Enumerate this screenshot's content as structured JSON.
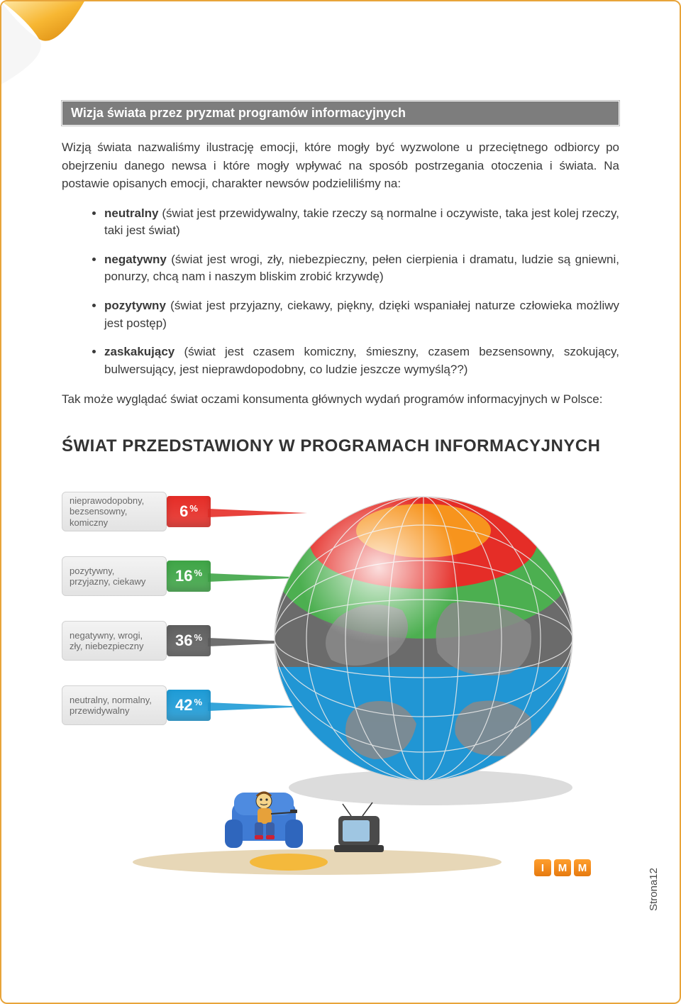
{
  "header": {
    "title": "Wizja świata przez pryzmat programów informacyjnych"
  },
  "intro": "Wizją świata nazwaliśmy ilustrację emocji, które mogły być wyzwolone u przeciętnego odbiorcy po obejrzeniu danego newsa i które mogły wpływać na sposób postrzegania otoczenia i świata. Na postawie opisanych emocji, charakter newsów podzieliliśmy na:",
  "bullets": [
    {
      "term": "neutralny",
      "desc": " (świat jest przewidywalny, takie rzeczy są normalne i oczywiste, taka jest kolej rzeczy, taki jest świat)"
    },
    {
      "term": "negatywny",
      "desc": " (świat jest wrogi, zły, niebezpieczny, pełen cierpienia i dramatu, ludzie są gniewni, ponurzy, chcą nam i naszym bliskim zrobić krzywdę)"
    },
    {
      "term": "pozytywny",
      "desc": " (świat jest przyjazny, ciekawy, piękny, dzięki wspaniałej naturze człowieka możliwy jest postęp)"
    },
    {
      "term": "zaskakujący",
      "desc": " (świat jest czasem komiczny, śmieszny, czasem bezsensowny, szokujący, bulwersujący, jest nieprawdopodobny, co ludzie jeszcze wymyślą??)"
    }
  ],
  "closing": "Tak może wyglądać świat oczami konsumenta głównych wydań programów informacyjnych w Polsce:",
  "infographic": {
    "title": "ŚWIAT PRZEDSTAWIONY W PROGRAMACH INFORMACYJNYCH",
    "globe_colors": {
      "top_cap": "#f05a28",
      "band_top": "#e52d27",
      "band_green": "#4caf50",
      "band_gray": "#6b6b6b",
      "band_blue": "#2196d4",
      "land": "#8a8a8a",
      "grid": "#d9d9d9"
    },
    "categories": [
      {
        "label1": "nieprawodopobny,",
        "label2": "bezsensowny, komiczny",
        "value": 6,
        "color": "#e52d27",
        "wedge": "#e52d27"
      },
      {
        "label1": "pozytywny,",
        "label2": "przyjazny, ciekawy",
        "value": 16,
        "color": "#3fa547",
        "wedge": "#3fa547"
      },
      {
        "label1": "negatywny, wrogi,",
        "label2": "zły, niebezpieczny",
        "value": 36,
        "color": "#5f5f5f",
        "wedge": "#5f5f5f"
      },
      {
        "label1": "neutralny, normalny,",
        "label2": "przewidywalny",
        "value": 42,
        "color": "#1e9bd6",
        "wedge": "#1e9bd6"
      }
    ],
    "logo": [
      "I",
      "M",
      "M"
    ]
  },
  "page_number": "Strona12"
}
